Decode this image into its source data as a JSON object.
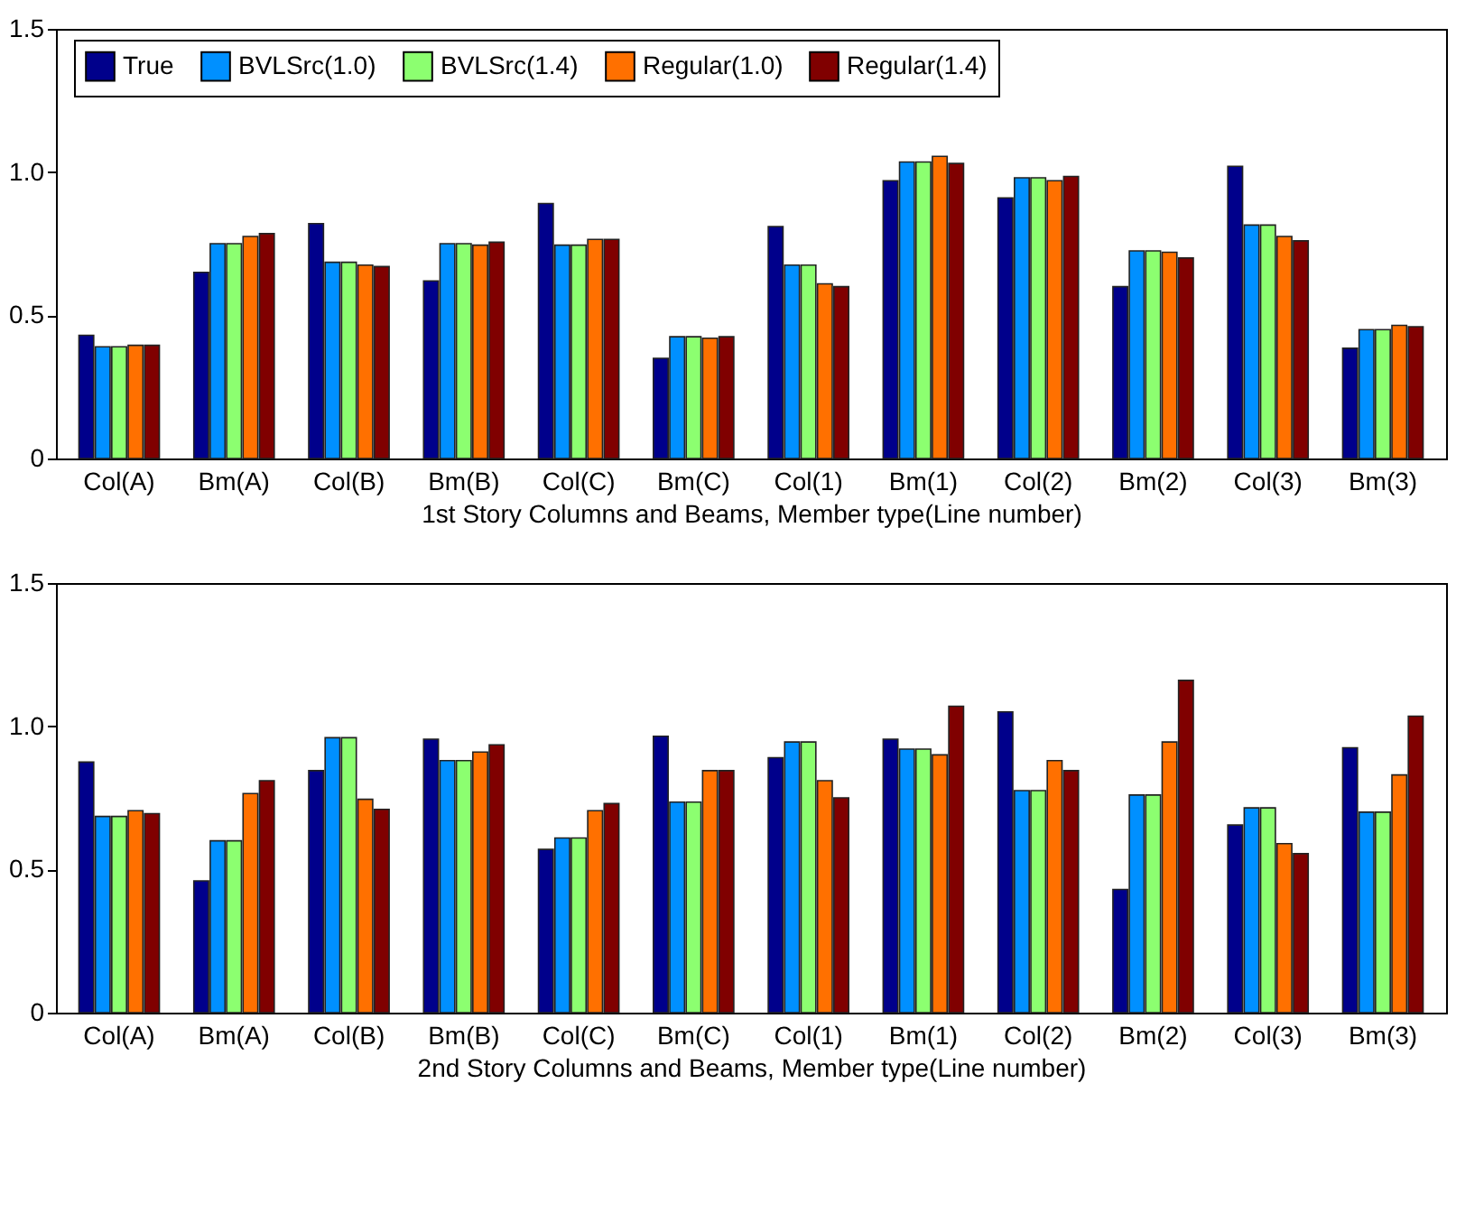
{
  "chart_data": [
    {
      "type": "bar",
      "xlabel": "1st Story Columns and Beams, Member type(Line number)",
      "categories": [
        "Col(A)",
        "Bm(A)",
        "Col(B)",
        "Bm(B)",
        "Col(C)",
        "Bm(C)",
        "Col(1)",
        "Bm(1)",
        "Col(2)",
        "Bm(2)",
        "Col(3)",
        "Bm(3)"
      ],
      "series": [
        {
          "name": "True",
          "color": "#00008b",
          "values": [
            0.43,
            0.65,
            0.82,
            0.62,
            0.89,
            0.35,
            0.81,
            0.97,
            0.91,
            0.6,
            1.02,
            0.385
          ]
        },
        {
          "name": "BVLSrc(1.0)",
          "color": "#0090ff",
          "values": [
            0.39,
            0.75,
            0.685,
            0.75,
            0.745,
            0.425,
            0.675,
            1.035,
            0.98,
            0.725,
            0.815,
            0.45
          ]
        },
        {
          "name": "BVLSrc(1.4)",
          "color": "#8cff70",
          "values": [
            0.39,
            0.75,
            0.685,
            0.75,
            0.745,
            0.425,
            0.675,
            1.035,
            0.98,
            0.725,
            0.815,
            0.45
          ]
        },
        {
          "name": "Regular(1.0)",
          "color": "#ff7000",
          "values": [
            0.395,
            0.775,
            0.675,
            0.745,
            0.765,
            0.42,
            0.61,
            1.055,
            0.97,
            0.72,
            0.775,
            0.465
          ]
        },
        {
          "name": "Regular(1.4)",
          "color": "#800000",
          "values": [
            0.395,
            0.785,
            0.67,
            0.755,
            0.765,
            0.425,
            0.6,
            1.03,
            0.985,
            0.7,
            0.76,
            0.46
          ]
        }
      ],
      "ylim": [
        0,
        1.5
      ],
      "yticks": [
        0,
        0.5,
        {
          "value": 1,
          "label": "1.0"
        },
        1.5
      ],
      "grid": false,
      "legend": "top"
    },
    {
      "type": "bar",
      "xlabel": "2nd Story Columns and Beams, Member type(Line number)",
      "categories": [
        "Col(A)",
        "Bm(A)",
        "Col(B)",
        "Bm(B)",
        "Col(C)",
        "Bm(C)",
        "Col(1)",
        "Bm(1)",
        "Col(2)",
        "Bm(2)",
        "Col(3)",
        "Bm(3)"
      ],
      "series": [
        {
          "name": "True",
          "color": "#00008b",
          "values": [
            0.875,
            0.46,
            0.845,
            0.955,
            0.57,
            0.965,
            0.89,
            0.955,
            1.05,
            0.43,
            0.655,
            0.925
          ]
        },
        {
          "name": "BVLSrc(1.0)",
          "color": "#0090ff",
          "values": [
            0.685,
            0.6,
            0.96,
            0.88,
            0.61,
            0.735,
            0.945,
            0.92,
            0.775,
            0.76,
            0.715,
            0.7
          ]
        },
        {
          "name": "BVLSrc(1.4)",
          "color": "#8cff70",
          "values": [
            0.685,
            0.6,
            0.96,
            0.88,
            0.61,
            0.735,
            0.945,
            0.92,
            0.775,
            0.76,
            0.715,
            0.7
          ]
        },
        {
          "name": "Regular(1.0)",
          "color": "#ff7000",
          "values": [
            0.705,
            0.765,
            0.745,
            0.91,
            0.705,
            0.845,
            0.81,
            0.9,
            0.88,
            0.945,
            0.59,
            0.83
          ]
        },
        {
          "name": "Regular(1.4)",
          "color": "#800000",
          "values": [
            0.695,
            0.81,
            0.71,
            0.935,
            0.73,
            0.845,
            0.75,
            1.07,
            0.845,
            1.16,
            0.555,
            1.035
          ]
        }
      ],
      "ylim": [
        0,
        1.5
      ],
      "yticks": [
        0,
        0.5,
        {
          "value": 1,
          "label": "1.0"
        },
        1.5
      ],
      "grid": false,
      "legend": "top"
    }
  ]
}
